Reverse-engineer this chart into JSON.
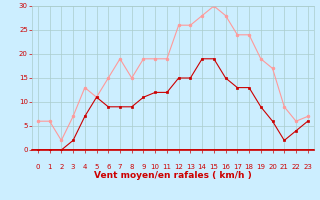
{
  "x": [
    0,
    1,
    2,
    3,
    4,
    5,
    6,
    7,
    8,
    9,
    10,
    11,
    12,
    13,
    14,
    15,
    16,
    17,
    18,
    19,
    20,
    21,
    22,
    23
  ],
  "moyen": [
    0,
    0,
    0,
    2,
    7,
    11,
    9,
    9,
    9,
    11,
    12,
    12,
    15,
    15,
    19,
    19,
    15,
    13,
    13,
    9,
    6,
    2,
    4,
    6
  ],
  "rafales": [
    6,
    6,
    2,
    7,
    13,
    11,
    15,
    19,
    15,
    19,
    19,
    19,
    26,
    26,
    28,
    30,
    28,
    24,
    24,
    19,
    17,
    9,
    6,
    7
  ],
  "moyen_color": "#cc0000",
  "rafales_color": "#ff9999",
  "bg_color": "#cceeff",
  "grid_color": "#aacccc",
  "xlabel": "Vent moyen/en rafales ( km/h )",
  "ylim": [
    0,
    30
  ],
  "xlim_min": -0.5,
  "xlim_max": 23.5,
  "yticks": [
    0,
    5,
    10,
    15,
    20,
    25,
    30
  ],
  "xticks": [
    0,
    1,
    2,
    3,
    4,
    5,
    6,
    7,
    8,
    9,
    10,
    11,
    12,
    13,
    14,
    15,
    16,
    17,
    18,
    19,
    20,
    21,
    22,
    23
  ],
  "tick_color": "#cc0000",
  "label_color": "#cc0000",
  "tick_fontsize": 5.0,
  "xlabel_fontsize": 6.5,
  "marker_size": 2.0,
  "line_width": 0.8
}
